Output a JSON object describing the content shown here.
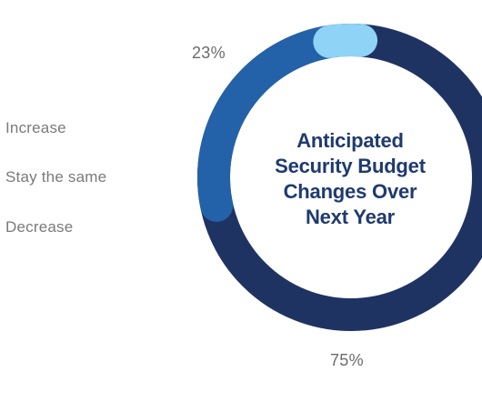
{
  "chart_data": {
    "type": "pie",
    "variant": "donut",
    "title_lines": [
      "Anticipated",
      "Security Budget",
      "Changes Over",
      "Next Year"
    ],
    "categories": [
      "Increase",
      "Stay the same",
      "Decrease"
    ],
    "values": [
      75,
      23,
      2
    ],
    "colors": [
      "#1f3363",
      "#2362a8",
      "#8fd3f7"
    ],
    "data_labels": [
      "75%",
      "23%",
      ""
    ],
    "legend_position": "left"
  }
}
